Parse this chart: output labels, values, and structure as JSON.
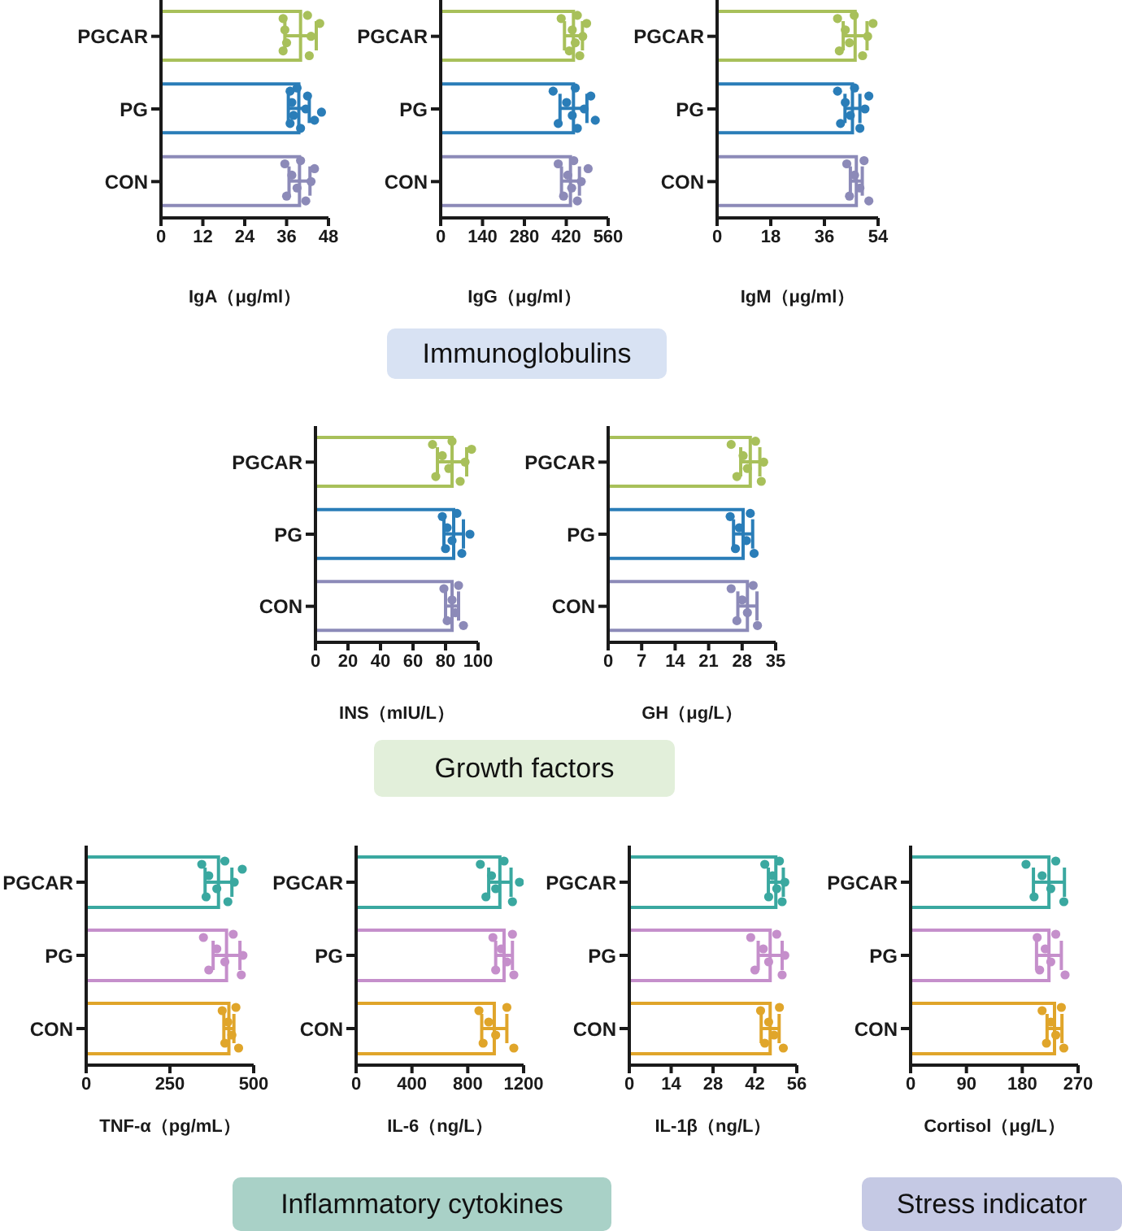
{
  "chart_data": [
    {
      "type": "bar",
      "orientation": "horizontal",
      "xlabel": "IgA（μg/ml）",
      "categories": [
        "PGCAR",
        "PG",
        "CON"
      ],
      "xlim": [
        0,
        48
      ],
      "xticks": [
        0,
        12,
        24,
        36,
        48
      ],
      "series": [
        {
          "type": "bar",
          "values": [
            40,
            39.5,
            39.7
          ],
          "colors": [
            "#a8c05a",
            "#2a7db8",
            "#8c8ab8"
          ],
          "errors": [
            4.5,
            3,
            3
          ]
        },
        {
          "type": "scatter",
          "color": "#a8c05a",
          "x": [
            "PGCAR",
            "PGCAR",
            "PGCAR",
            "PGCAR",
            "PGCAR",
            "PGCAR",
            "PGCAR",
            "PGCAR"
          ],
          "values": [
            35,
            35,
            35.5,
            36,
            42,
            42.5,
            43,
            45.5
          ]
        },
        {
          "type": "scatter",
          "color": "#2a7db8",
          "x": [
            "PG",
            "PG",
            "PG",
            "PG",
            "PG",
            "PG",
            "PG",
            "PG",
            "PG",
            "PG"
          ],
          "values": [
            37,
            37,
            37.5,
            38,
            39,
            40,
            41.5,
            42,
            44,
            46
          ]
        },
        {
          "type": "scatter",
          "color": "#8c8ab8",
          "x": [
            "CON",
            "CON",
            "CON",
            "CON",
            "CON",
            "CON",
            "CON",
            "CON"
          ],
          "values": [
            35.5,
            36,
            37.5,
            39,
            40,
            41.5,
            43,
            44
          ]
        }
      ]
    },
    {
      "type": "bar",
      "orientation": "horizontal",
      "xlabel": "IgG（μg/ml）",
      "categories": [
        "PGCAR",
        "PG",
        "CON"
      ],
      "xlim": [
        0,
        560
      ],
      "xticks": [
        0,
        140,
        280,
        420,
        560
      ],
      "annotations": [
        "Immunoglobulins"
      ],
      "series": [
        {
          "type": "bar",
          "values": [
            444,
            444,
            434
          ],
          "colors": [
            "#a8c05a",
            "#2a7db8",
            "#8c8ab8"
          ],
          "errors": [
            30,
            45,
            30
          ]
        },
        {
          "type": "scatter",
          "color": "#a8c05a",
          "x": [
            "PGCAR",
            "PGCAR",
            "PGCAR",
            "PGCAR",
            "PGCAR",
            "PGCAR",
            "PGCAR",
            "PGCAR"
          ],
          "values": [
            403,
            430,
            440,
            450,
            457,
            465,
            475,
            488
          ]
        },
        {
          "type": "scatter",
          "color": "#2a7db8",
          "x": [
            "PG",
            "PG",
            "PG",
            "PG",
            "PG",
            "PG",
            "PG",
            "PG",
            "PG"
          ],
          "values": [
            376,
            393,
            421,
            440,
            450,
            457,
            480,
            502,
            517
          ]
        },
        {
          "type": "scatter",
          "color": "#8c8ab8",
          "x": [
            "CON",
            "CON",
            "CON",
            "CON",
            "CON",
            "CON",
            "CON",
            "CON"
          ],
          "values": [
            393,
            411,
            425,
            438,
            445,
            457,
            470,
            493
          ]
        }
      ]
    },
    {
      "type": "bar",
      "orientation": "horizontal",
      "xlabel": "IgM（μg/ml）",
      "categories": [
        "PGCAR",
        "PG",
        "CON"
      ],
      "xlim": [
        0,
        54
      ],
      "xticks": [
        0,
        18,
        36,
        54
      ],
      "series": [
        {
          "type": "bar",
          "values": [
            46.3,
            45.4,
            46.7
          ],
          "colors": [
            "#a8c05a",
            "#2a7db8",
            "#8c8ab8"
          ],
          "errors": [
            4,
            2.5,
            2
          ]
        },
        {
          "type": "scatter",
          "color": "#a8c05a",
          "x": [
            "PGCAR",
            "PGCAR",
            "PGCAR",
            "PGCAR",
            "PGCAR",
            "PGCAR",
            "PGCAR",
            "PGCAR"
          ],
          "values": [
            40.4,
            41,
            43,
            44.4,
            46,
            48.8,
            50.5,
            52.3
          ]
        },
        {
          "type": "scatter",
          "color": "#2a7db8",
          "x": [
            "PG",
            "PG",
            "PG",
            "PG",
            "PG",
            "PG",
            "PG",
            "PG"
          ],
          "values": [
            40.4,
            41.4,
            43,
            44.7,
            46.1,
            47.9,
            49.6,
            50.9
          ]
        },
        {
          "type": "scatter",
          "color": "#8c8ab8",
          "x": [
            "CON",
            "CON",
            "CON",
            "CON",
            "CON",
            "CON"
          ],
          "values": [
            43.5,
            44.4,
            46.1,
            47.9,
            49.3,
            50.9
          ]
        }
      ]
    },
    {
      "type": "bar",
      "orientation": "horizontal",
      "xlabel": "INS（mIU/L）",
      "categories": [
        "PGCAR",
        "PG",
        "CON"
      ],
      "xlim": [
        0,
        100
      ],
      "xticks": [
        0,
        20,
        40,
        60,
        80,
        100
      ],
      "annotations": [
        "Growth factors"
      ],
      "series": [
        {
          "type": "bar",
          "values": [
            84,
            85,
            84
          ],
          "colors": [
            "#a8c05a",
            "#2a7db8",
            "#8c8ab8"
          ],
          "errors": [
            9,
            6,
            4
          ]
        },
        {
          "type": "scatter",
          "color": "#a8c05a",
          "x": [
            "PGCAR",
            "PGCAR",
            "PGCAR",
            "PGCAR",
            "PGCAR",
            "PGCAR",
            "PGCAR",
            "PGCAR"
          ],
          "values": [
            72,
            74,
            78,
            82,
            84,
            89,
            92,
            96
          ]
        },
        {
          "type": "scatter",
          "color": "#2a7db8",
          "x": [
            "PG",
            "PG",
            "PG",
            "PG",
            "PG",
            "PG",
            "PG"
          ],
          "values": [
            78,
            80,
            81,
            84,
            87,
            90,
            95
          ]
        },
        {
          "type": "scatter",
          "color": "#8c8ab8",
          "x": [
            "CON",
            "CON",
            "CON",
            "CON",
            "CON",
            "CON"
          ],
          "values": [
            79,
            81,
            84,
            86,
            88,
            91
          ]
        }
      ]
    },
    {
      "type": "bar",
      "orientation": "horizontal",
      "xlabel": "GH（μg/L）",
      "categories": [
        "PGCAR",
        "PG",
        "CON"
      ],
      "xlim": [
        0,
        35
      ],
      "xticks": [
        0,
        7,
        14,
        21,
        28,
        35
      ],
      "series": [
        {
          "type": "bar",
          "values": [
            29.7,
            28.2,
            29.1
          ],
          "colors": [
            "#a8c05a",
            "#2a7db8",
            "#8c8ab8"
          ],
          "errors": [
            2,
            2,
            2
          ]
        },
        {
          "type": "scatter",
          "color": "#a8c05a",
          "x": [
            "PGCAR",
            "PGCAR",
            "PGCAR",
            "PGCAR",
            "PGCAR",
            "PGCAR",
            "PGCAR"
          ],
          "values": [
            25.7,
            26.9,
            28.2,
            29.1,
            30.8,
            32,
            32.5
          ]
        },
        {
          "type": "scatter",
          "color": "#2a7db8",
          "x": [
            "PG",
            "PG",
            "PG",
            "PG",
            "PG",
            "PG"
          ],
          "values": [
            25.5,
            26.6,
            27.4,
            28.9,
            29.7,
            30.5
          ]
        },
        {
          "type": "scatter",
          "color": "#8c8ab8",
          "x": [
            "CON",
            "CON",
            "CON",
            "CON",
            "CON",
            "CON"
          ],
          "values": [
            25.7,
            26.9,
            28,
            29.1,
            30.3,
            31.2
          ]
        }
      ]
    },
    {
      "type": "bar",
      "orientation": "horizontal",
      "xlabel": "TNF-α（pg/mL）",
      "categories": [
        "PGCAR",
        "PG",
        "CON"
      ],
      "xlim": [
        0,
        500
      ],
      "xticks": [
        0,
        250,
        500
      ],
      "series": [
        {
          "type": "bar",
          "values": [
            395,
            419,
            426
          ],
          "colors": [
            "#3aa8a0",
            "#c58fcb",
            "#e0a52a"
          ],
          "errors": [
            40,
            40,
            15
          ]
        },
        {
          "type": "scatter",
          "color": "#3aa8a0",
          "x": [
            "PGCAR",
            "PGCAR",
            "PGCAR",
            "PGCAR",
            "PGCAR",
            "PGCAR",
            "PGCAR",
            "PGCAR"
          ],
          "values": [
            345,
            358,
            366,
            390,
            414,
            423,
            442,
            466
          ]
        },
        {
          "type": "scatter",
          "color": "#c58fcb",
          "x": [
            "PG",
            "PG",
            "PG",
            "PG",
            "PG",
            "PG",
            "PG"
          ],
          "values": [
            350,
            366,
            390,
            414,
            439,
            463,
            468
          ]
        },
        {
          "type": "scatter",
          "color": "#e0a52a",
          "x": [
            "CON",
            "CON",
            "CON",
            "CON",
            "CON",
            "CON"
          ],
          "values": [
            406,
            414,
            423,
            435,
            447,
            455
          ]
        }
      ]
    },
    {
      "type": "bar",
      "orientation": "horizontal",
      "xlabel": "IL-6（ng/L）",
      "categories": [
        "PGCAR",
        "PG",
        "CON"
      ],
      "xlim": [
        0,
        1200
      ],
      "xticks": [
        0,
        400,
        800,
        1200
      ],
      "annotations": [
        "Inflammatory cytokines"
      ],
      "series": [
        {
          "type": "bar",
          "values": [
            1030,
            1060,
            990
          ],
          "colors": [
            "#3aa8a0",
            "#c58fcb",
            "#e0a52a"
          ],
          "errors": [
            80,
            60,
            90
          ]
        },
        {
          "type": "scatter",
          "color": "#3aa8a0",
          "x": [
            "PGCAR",
            "PGCAR",
            "PGCAR",
            "PGCAR",
            "PGCAR",
            "PGCAR",
            "PGCAR"
          ],
          "values": [
            890,
            930,
            970,
            1000,
            1060,
            1120,
            1170
          ]
        },
        {
          "type": "scatter",
          "color": "#c58fcb",
          "x": [
            "PG",
            "PG",
            "PG",
            "PG",
            "PG",
            "PG"
          ],
          "values": [
            980,
            1000,
            1040,
            1080,
            1120,
            1130
          ]
        },
        {
          "type": "scatter",
          "color": "#e0a52a",
          "x": [
            "CON",
            "CON",
            "CON",
            "CON",
            "CON",
            "CON"
          ],
          "values": [
            880,
            910,
            950,
            1000,
            1080,
            1130
          ]
        }
      ]
    },
    {
      "type": "bar",
      "orientation": "horizontal",
      "xlabel": "IL-1β（ng/L）",
      "categories": [
        "PGCAR",
        "PG",
        "CON"
      ],
      "xlim": [
        0,
        56
      ],
      "xticks": [
        0,
        14,
        28,
        42,
        56
      ],
      "series": [
        {
          "type": "bar",
          "values": [
            49,
            47.1,
            47.1
          ],
          "colors": [
            "#3aa8a0",
            "#c58fcb",
            "#e0a52a"
          ],
          "errors": [
            2.5,
            4,
            3
          ]
        },
        {
          "type": "scatter",
          "color": "#3aa8a0",
          "x": [
            "PGCAR",
            "PGCAR",
            "PGCAR",
            "PGCAR",
            "PGCAR",
            "PGCAR",
            "PGCAR"
          ],
          "values": [
            45.3,
            46.6,
            47.9,
            49.3,
            50.2,
            51.1,
            52
          ]
        },
        {
          "type": "scatter",
          "color": "#c58fcb",
          "x": [
            "PG",
            "PG",
            "PG",
            "PG",
            "PG",
            "PG",
            "PG"
          ],
          "values": [
            40.6,
            42,
            44.8,
            46.6,
            49.3,
            51.1,
            52
          ]
        },
        {
          "type": "scatter",
          "color": "#e0a52a",
          "x": [
            "CON",
            "CON",
            "CON",
            "CON",
            "CON",
            "CON"
          ],
          "values": [
            43.9,
            45.3,
            46.6,
            48.4,
            50.2,
            51.5
          ]
        }
      ]
    },
    {
      "type": "bar",
      "orientation": "horizontal",
      "xlabel": "Cortisol（μg/L）",
      "categories": [
        "PGCAR",
        "PG",
        "CON"
      ],
      "xlim": [
        0,
        270
      ],
      "xticks": [
        0,
        90,
        180,
        270
      ],
      "annotations": [
        "Stress indicator"
      ],
      "series": [
        {
          "type": "bar",
          "values": [
            223,
            223,
            232
          ],
          "colors": [
            "#3aa8a0",
            "#c58fcb",
            "#e0a52a"
          ],
          "errors": [
            25,
            20,
            12
          ]
        },
        {
          "type": "scatter",
          "color": "#3aa8a0",
          "x": [
            "PGCAR",
            "PGCAR",
            "PGCAR",
            "PGCAR",
            "PGCAR",
            "PGCAR"
          ],
          "values": [
            186,
            199,
            212,
            226,
            234,
            247
          ]
        },
        {
          "type": "scatter",
          "color": "#c58fcb",
          "x": [
            "PG",
            "PG",
            "PG",
            "PG",
            "PG",
            "PG"
          ],
          "values": [
            204,
            208,
            217,
            226,
            234,
            249
          ]
        },
        {
          "type": "scatter",
          "color": "#e0a52a",
          "x": [
            "CON",
            "CON",
            "CON",
            "CON",
            "CON",
            "CON"
          ],
          "values": [
            212,
            219,
            226,
            234,
            243,
            247
          ]
        }
      ]
    }
  ]
}
